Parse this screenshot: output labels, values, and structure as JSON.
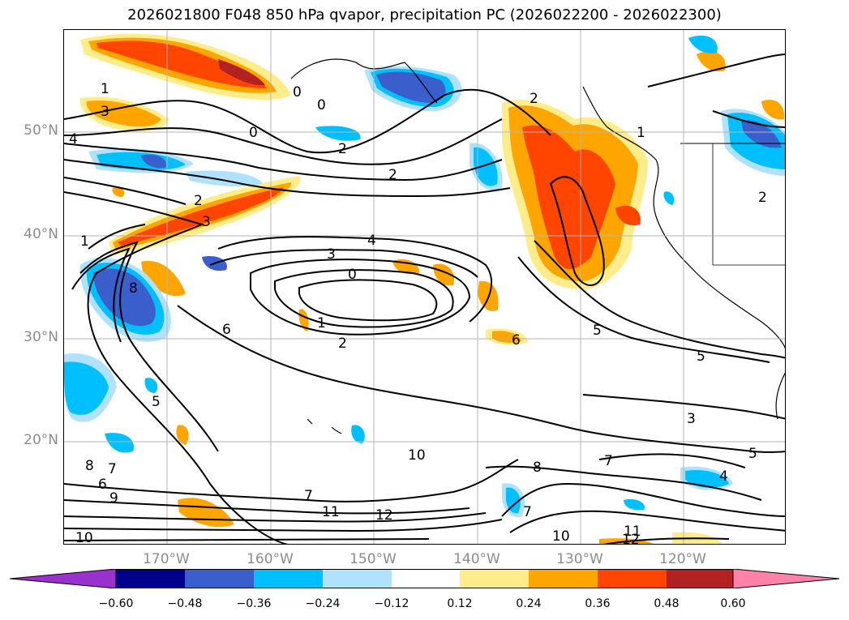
{
  "title": "2026021800 F048 850 hPa qvapor, precipitation PC (2026022200 - 2026022300)",
  "latitude_labels": [
    "50°N",
    "40°N",
    "30°N",
    "20°N"
  ],
  "longitude_labels": [
    "170°W",
    "160°W",
    "150°W",
    "140°W",
    "130°W",
    "120°W"
  ],
  "contour_labels": [
    "1",
    "3",
    "4",
    "0",
    "2",
    "2",
    "0",
    "0",
    "3",
    "1",
    "2",
    "4",
    "3",
    "0",
    "1",
    "2",
    "6",
    "8",
    "5",
    "5",
    "6",
    "5",
    "3",
    "7",
    "8",
    "10",
    "7",
    "11",
    "12",
    "7",
    "10",
    "11",
    "12",
    "8",
    "7",
    "6",
    "9",
    "10",
    "4",
    "2",
    "1",
    "2",
    "5"
  ],
  "colorbar": {
    "tick_labels": [
      "−0.60",
      "−0.48",
      "−0.36",
      "−0.24",
      "−0.12",
      "0.12",
      "0.24",
      "0.36",
      "0.48",
      "0.60"
    ],
    "colors": [
      "#9932cc",
      "#00008b",
      "#3a5fcd",
      "#00bfff",
      "#b0e2ff",
      "#ffffff",
      "#ffec8b",
      "#ffa500",
      "#ff4500",
      "#b22222",
      "#ff82ab"
    ]
  }
}
